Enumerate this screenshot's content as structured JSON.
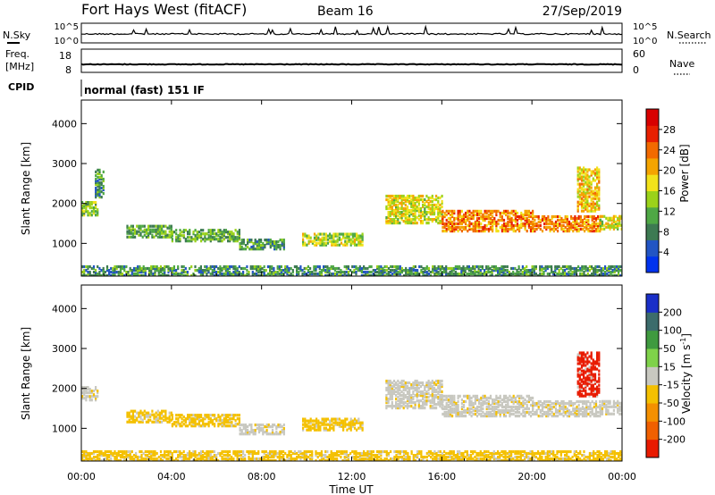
{
  "header": {
    "station": "Fort Hays West (fitACF)",
    "beam": "Beam 16",
    "date": "27/Sep/2019",
    "mode": "normal (fast) 151 IF"
  },
  "noise_panel": {
    "left_label": "N.Sky",
    "right_label": "N.Search",
    "left_ticks": [
      "10^5",
      "10^0"
    ],
    "right_ticks": [
      "10^5",
      "10^0"
    ]
  },
  "freq_panel": {
    "left_label_1": "Freq.",
    "left_label_2": "[MHz]",
    "right_label": "Nave",
    "left_ticks": [
      "18",
      "8"
    ],
    "right_ticks": [
      "60",
      "0"
    ]
  },
  "cpid_label": "CPID",
  "x_axis": {
    "label": "Time UT",
    "ticks": [
      "00:00",
      "04:00",
      "08:00",
      "12:00",
      "16:00",
      "20:00",
      "00:00"
    ]
  },
  "chart_data": [
    {
      "type": "heatmap",
      "ylabel": "Slant Range [km]",
      "yticks": [
        "1000",
        "2000",
        "3000",
        "4000"
      ],
      "ylim": [
        180,
        4590
      ],
      "xlim_hours": [
        0,
        24
      ],
      "colorbar": {
        "label": "Power [dB]",
        "ticks": [
          "4",
          "8",
          "12",
          "16",
          "20",
          "24",
          "28"
        ],
        "colors": [
          "#0033ee",
          "#2255c4",
          "#3d7a52",
          "#4fa845",
          "#9bd21a",
          "#f2e21a",
          "#f4a400",
          "#f26a00",
          "#e82000",
          "#d80000"
        ]
      },
      "echo_regions": [
        {
          "t_start": 0.0,
          "t_end": 0.7,
          "r_low": 1700,
          "r_high": 2050,
          "level": 12
        },
        {
          "t_start": 0.6,
          "t_end": 1.0,
          "r_low": 2150,
          "r_high": 2850,
          "level": 8
        },
        {
          "t_start": 2.0,
          "t_end": 4.0,
          "r_low": 1150,
          "r_high": 1450,
          "level": 10
        },
        {
          "t_start": 4.0,
          "t_end": 7.0,
          "r_low": 1050,
          "r_high": 1350,
          "level": 10
        },
        {
          "t_start": 7.0,
          "t_end": 9.0,
          "r_low": 850,
          "r_high": 1100,
          "level": 9
        },
        {
          "t_start": 9.8,
          "t_end": 12.5,
          "r_low": 950,
          "r_high": 1250,
          "level": 14
        },
        {
          "t_start": 13.5,
          "t_end": 16.0,
          "r_low": 1500,
          "r_high": 2200,
          "level": 16
        },
        {
          "t_start": 16.0,
          "t_end": 20.0,
          "r_low": 1300,
          "r_high": 1800,
          "level": 22
        },
        {
          "t_start": 20.0,
          "t_end": 23.0,
          "r_low": 1300,
          "r_high": 1700,
          "level": 22
        },
        {
          "t_start": 22.0,
          "t_end": 23.0,
          "r_low": 1800,
          "r_high": 2900,
          "level": 18
        },
        {
          "t_start": 23.0,
          "t_end": 24.0,
          "r_low": 1350,
          "r_high": 1700,
          "level": 16
        },
        {
          "t_start": 0.0,
          "t_end": 24.0,
          "r_low": 180,
          "r_high": 420,
          "level": 8
        }
      ]
    },
    {
      "type": "heatmap",
      "ylabel": "Slant Range [km]",
      "yticks": [
        "1000",
        "2000",
        "3000",
        "4000"
      ],
      "ylim": [
        180,
        4590
      ],
      "xlim_hours": [
        0,
        24
      ],
      "colorbar": {
        "label": "Velocity [m s^-1]",
        "ticks": [
          "200",
          "100",
          "50",
          "15",
          "-15",
          "-50",
          "-100",
          "-200"
        ],
        "colors": [
          "#1a2fc8",
          "#3c6c6c",
          "#3f9a3f",
          "#7fd24a",
          "#c8c8c0",
          "#f4c000",
          "#f49000",
          "#f06000",
          "#e81a00"
        ]
      },
      "echo_regions": [
        {
          "t_start": 0.0,
          "t_end": 0.7,
          "r_low": 1700,
          "r_high": 2050,
          "level": 0
        },
        {
          "t_start": 2.0,
          "t_end": 4.0,
          "r_low": 1150,
          "r_high": 1450,
          "level": -30
        },
        {
          "t_start": 4.0,
          "t_end": 7.0,
          "r_low": 1050,
          "r_high": 1350,
          "level": -20
        },
        {
          "t_start": 7.0,
          "t_end": 9.0,
          "r_low": 850,
          "r_high": 1100,
          "level": 0
        },
        {
          "t_start": 9.8,
          "t_end": 12.5,
          "r_low": 950,
          "r_high": 1250,
          "level": -40
        },
        {
          "t_start": 13.5,
          "t_end": 16.0,
          "r_low": 1500,
          "r_high": 2200,
          "level": 0
        },
        {
          "t_start": 16.0,
          "t_end": 20.0,
          "r_low": 1300,
          "r_high": 1800,
          "level": 0
        },
        {
          "t_start": 20.0,
          "t_end": 23.0,
          "r_low": 1300,
          "r_high": 1700,
          "level": 0
        },
        {
          "t_start": 22.0,
          "t_end": 23.0,
          "r_low": 1800,
          "r_high": 2900,
          "level": -200
        },
        {
          "t_start": 23.0,
          "t_end": 24.0,
          "r_low": 1350,
          "r_high": 1700,
          "level": 0
        },
        {
          "t_start": 0.0,
          "t_end": 24.0,
          "r_low": 180,
          "r_high": 420,
          "level": -30
        }
      ]
    }
  ]
}
